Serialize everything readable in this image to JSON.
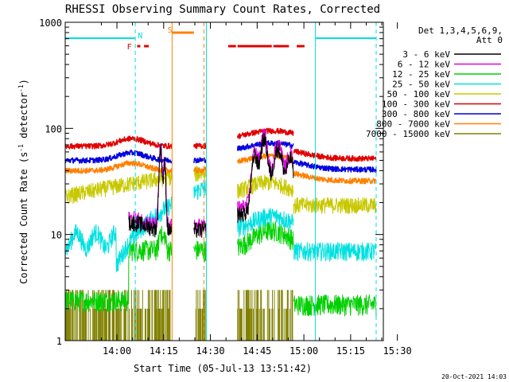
{
  "chart_data": {
    "type": "line",
    "title": "RHESSI Observing Summary Count Rates, Corrected",
    "xlabel": "Start Time (05-Jul-13 13:51:42)",
    "ylabel": "Corrected Count Rate (s",
    "ylabel_sup1": "-1",
    "ylabel_mid": " detector",
    "ylabel_sup2": "-1",
    "ylabel_end": ")",
    "yscale": "log",
    "ylim": [
      1,
      1000
    ],
    "y_ticks": [
      {
        "v": 1,
        "label": "1"
      },
      {
        "v": 10,
        "label": "10"
      },
      {
        "v": 100,
        "label": "100"
      },
      {
        "v": 1000,
        "label": "1000"
      }
    ],
    "xlim_min": [
      -8.3,
      93.8
    ],
    "x_ticks": [
      {
        "t": 8.3,
        "label": "14:00"
      },
      {
        "t": 23.3,
        "label": "14:15"
      },
      {
        "t": 38.3,
        "label": "14:30"
      },
      {
        "t": 53.3,
        "label": "14:45"
      },
      {
        "t": 68.3,
        "label": "15:00"
      },
      {
        "t": 83.3,
        "label": "15:15"
      },
      {
        "t": 98.3,
        "label": "15:30"
      }
    ],
    "legend_header": [
      "Det 1,3,4,5,6,9,",
      "Att 0"
    ],
    "series": [
      {
        "name": "3 - 6 keV",
        "color": "#000000"
      },
      {
        "name": "6 - 12 keV",
        "color": "#e000e0"
      },
      {
        "name": "12 - 25 keV",
        "color": "#00d000"
      },
      {
        "name": "25 - 50 keV",
        "color": "#00e0e0"
      },
      {
        "name": "50 - 100 keV",
        "color": "#c8c800"
      },
      {
        "name": "100 - 300 keV",
        "color": "#e00000"
      },
      {
        "name": "300 - 800 keV",
        "color": "#0000e0"
      },
      {
        "name": "800 - 7000 keV",
        "color": "#ff8000"
      },
      {
        "name": "7000 - 15000 keV",
        "color": "#808000"
      }
    ],
    "flag_labels": [
      {
        "label": "N",
        "color": "#00e0e0"
      },
      {
        "label": "S",
        "color": "#ff8000"
      },
      {
        "label": "F",
        "color": "#e00000"
      }
    ],
    "segments": [
      {
        "start": -8.3,
        "end": 14.2,
        "a": 1,
        "b": 0,
        "c": 0
      },
      {
        "start": 14.2,
        "end": 26.0,
        "a": 1,
        "b": 0,
        "c": 1
      },
      {
        "start": 33.0,
        "end": 37.0,
        "a": 0,
        "b": 0,
        "c": 0
      },
      {
        "start": 47.0,
        "end": 65.0,
        "a": 0,
        "b": 0,
        "c": 1
      },
      {
        "start": 65.0,
        "end": 72.0,
        "a": 0,
        "b": 1,
        "c": 1
      },
      {
        "start": 72.0,
        "end": 91.5,
        "a": 0,
        "b": 1,
        "c": 0
      }
    ],
    "attenuator_bars": [
      {
        "start": 26.0,
        "end": 33.0
      }
    ]
  },
  "timestamp": "20-Oct-2021 14:03"
}
